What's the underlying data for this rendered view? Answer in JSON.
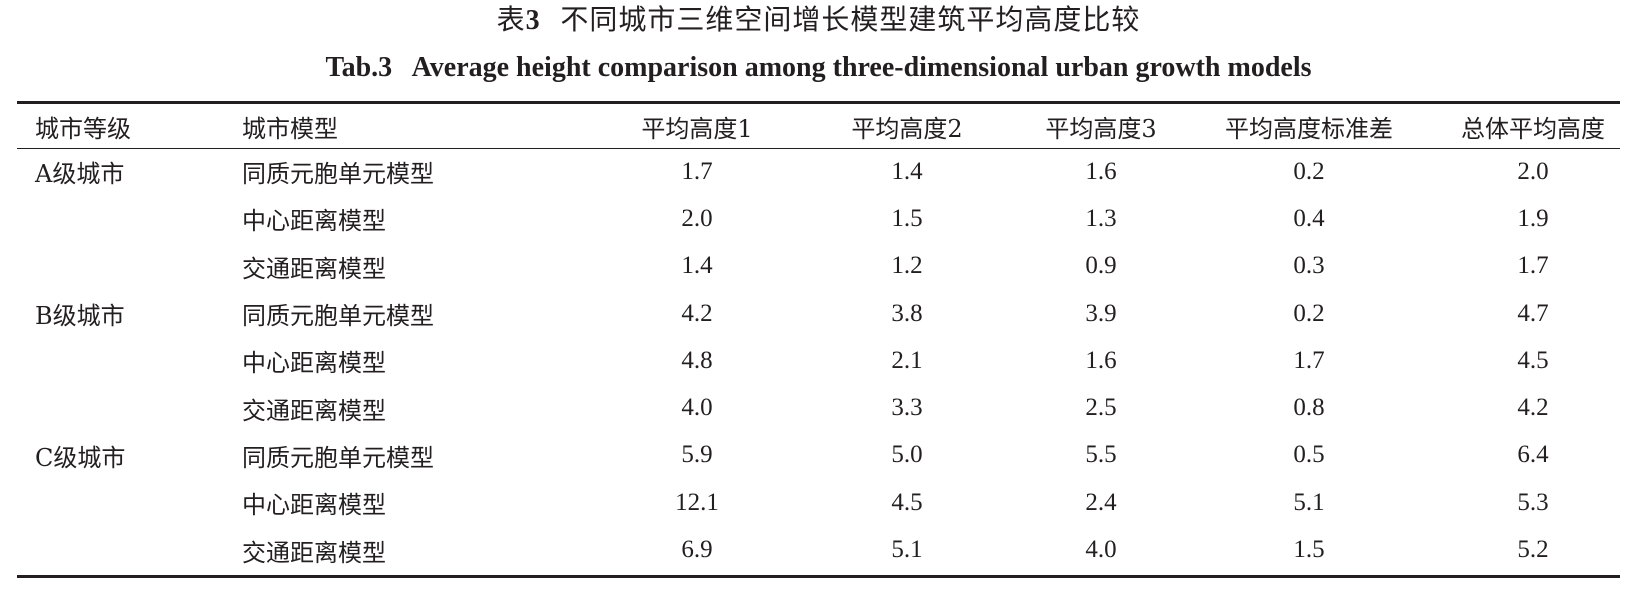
{
  "caption": {
    "label_cn": "表",
    "number": "3",
    "title_cn": "不同城市三维空间增长模型建筑平均高度比较",
    "title_en": "Tab.3   Average height comparison among three-dimensional urban growth models"
  },
  "table": {
    "headers": [
      "城市等级",
      "城市模型",
      "平均高度1",
      "平均高度2",
      "平均高度3",
      "平均高度标准差",
      "总体平均高度"
    ],
    "rows": [
      {
        "level": "A级城市",
        "model": "同质元胞单元模型",
        "h1": "1.7",
        "h2": "1.4",
        "h3": "1.6",
        "std": "0.2",
        "total": "2.0"
      },
      {
        "level": "",
        "model": "中心距离模型",
        "h1": "2.0",
        "h2": "1.5",
        "h3": "1.3",
        "std": "0.4",
        "total": "1.9"
      },
      {
        "level": "",
        "model": "交通距离模型",
        "h1": "1.4",
        "h2": "1.2",
        "h3": "0.9",
        "std": "0.3",
        "total": "1.7"
      },
      {
        "level": "B级城市",
        "model": "同质元胞单元模型",
        "h1": "4.2",
        "h2": "3.8",
        "h3": "3.9",
        "std": "0.2",
        "total": "4.7"
      },
      {
        "level": "",
        "model": "中心距离模型",
        "h1": "4.8",
        "h2": "2.1",
        "h3": "1.6",
        "std": "1.7",
        "total": "4.5"
      },
      {
        "level": "",
        "model": "交通距离模型",
        "h1": "4.0",
        "h2": "3.3",
        "h3": "2.5",
        "std": "0.8",
        "total": "4.2"
      },
      {
        "level": "C级城市",
        "model": "同质元胞单元模型",
        "h1": "5.9",
        "h2": "5.0",
        "h3": "5.5",
        "std": "0.5",
        "total": "6.4"
      },
      {
        "level": "",
        "model": "中心距离模型",
        "h1": "12.1",
        "h2": "4.5",
        "h3": "2.4",
        "std": "5.1",
        "total": "5.3"
      },
      {
        "level": "",
        "model": "交通距离模型",
        "h1": "6.9",
        "h2": "5.1",
        "h3": "4.0",
        "std": "1.5",
        "total": "5.2"
      }
    ]
  }
}
